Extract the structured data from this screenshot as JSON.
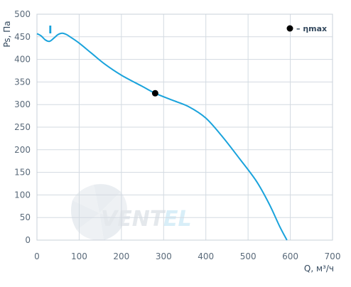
{
  "chart_data": {
    "type": "line",
    "title": "",
    "xlabel": "Q, м³/ч",
    "ylabel": "Ps, Па",
    "xlim": [
      0,
      700
    ],
    "ylim": [
      0,
      500
    ],
    "xticks": [
      "0",
      "100",
      "200",
      "300",
      "400",
      "500",
      "600",
      "700"
    ],
    "yticks": [
      "0",
      "50",
      "100",
      "150",
      "200",
      "250",
      "300",
      "350",
      "400",
      "450",
      "500"
    ],
    "grid": true,
    "curve_label": "I",
    "series": [
      {
        "color": "#1aa3dc",
        "x": [
          0,
          10,
          20,
          30,
          40,
          50,
          60,
          70,
          80,
          100,
          130,
          160,
          200,
          250,
          280,
          320,
          360,
          400,
          440,
          480,
          520,
          550,
          575,
          592
        ],
        "y": [
          457,
          452,
          443,
          440,
          447,
          455,
          458,
          455,
          449,
          436,
          413,
          390,
          365,
          340,
          325,
          310,
          295,
          270,
          228,
          180,
          130,
          80,
          30,
          0
        ]
      }
    ],
    "markers": [
      {
        "x": 280,
        "y": 325,
        "label": "η max"
      }
    ],
    "legend": {
      "position": "top-right",
      "symbol": "●",
      "text": "– ηmax"
    }
  },
  "watermark": {
    "part1": "VENT",
    "part2": "EL"
  }
}
